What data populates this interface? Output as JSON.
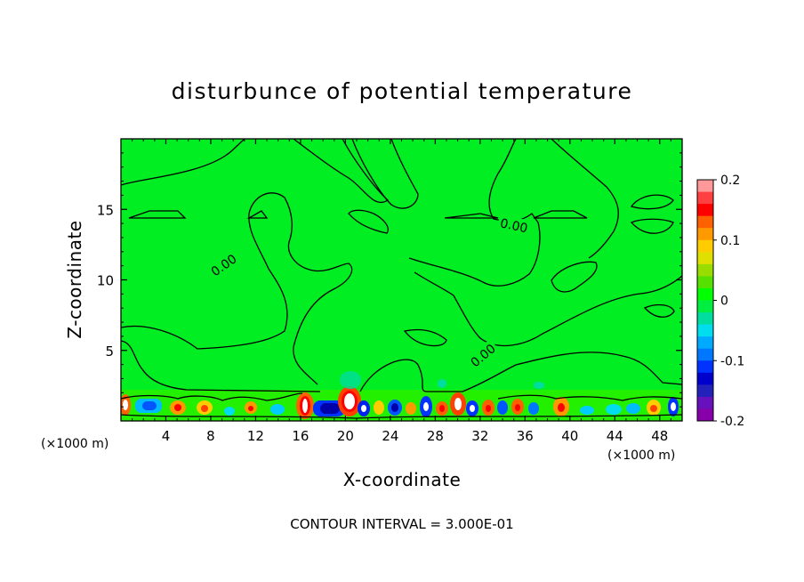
{
  "chart_data": {
    "type": "heatmap",
    "title": "disturbunce of potential temperature",
    "xlabel": "X-coordinate",
    "ylabel": "Z-coordinate",
    "x_unit_left": "(×1000 m)",
    "x_unit_right": "(×1000 m)",
    "xlim": [
      0,
      50
    ],
    "ylim": [
      0,
      20
    ],
    "x_ticks": [
      4,
      8,
      12,
      16,
      20,
      24,
      28,
      32,
      36,
      40,
      44,
      48
    ],
    "y_ticks": [
      5,
      10,
      15
    ],
    "colorbar": {
      "vmin": -0.2,
      "vmax": 0.2,
      "tick_values": [
        0.2,
        0.1,
        0,
        -0.1,
        -0.2
      ],
      "tick_labels": [
        "0.2",
        "0.1",
        "0",
        "-0.1",
        "-0.2"
      ],
      "colors": [
        "#ff9999",
        "#ff4040",
        "#ff0000",
        "#ff6000",
        "#ff9900",
        "#ffcc00",
        "#e0e000",
        "#99dd00",
        "#55e000",
        "#00ff00",
        "#00ee40",
        "#00dda0",
        "#00ddee",
        "#00aaff",
        "#0077ff",
        "#0033ff",
        "#0000cc",
        "#2222bb",
        "#6611bb",
        "#8800aa"
      ]
    },
    "contour_labels": [
      {
        "text": "0.00",
        "x": 9.2,
        "z": 11.0,
        "angle": -35
      },
      {
        "text": "0.00",
        "x": 35.0,
        "z": 13.8,
        "angle": 12
      },
      {
        "text": "0.00",
        "x": 32.3,
        "z": 4.6,
        "angle": -40
      }
    ],
    "caption": "CONTOUR INTERVAL = 3.000E-01"
  }
}
